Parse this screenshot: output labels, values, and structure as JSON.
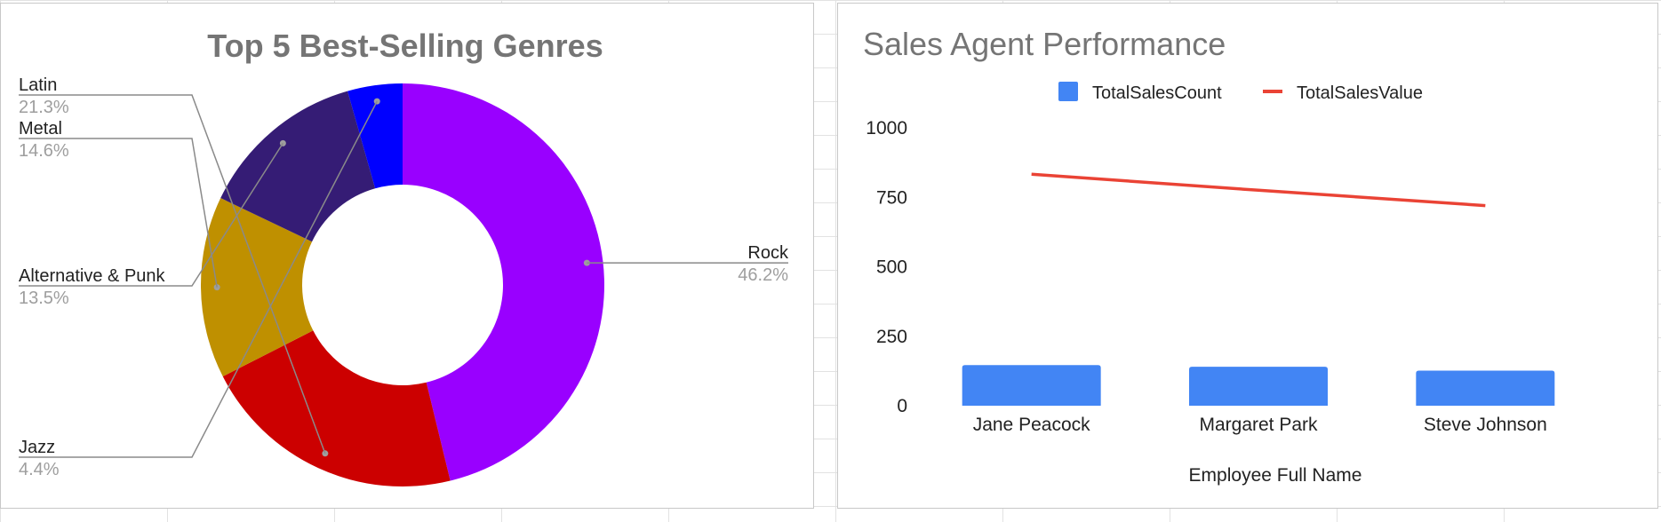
{
  "chart_data": [
    {
      "type": "pie",
      "donut": true,
      "title": "Top 5 Best-Selling Genres",
      "slices": [
        {
          "label": "Rock",
          "value": 46.2,
          "display": "46.2%",
          "color": "#9900ff"
        },
        {
          "label": "Latin",
          "value": 21.3,
          "display": "21.3%",
          "color": "#cc0000"
        },
        {
          "label": "Metal",
          "value": 14.6,
          "display": "14.6%",
          "color": "#bf9000"
        },
        {
          "label": "Alternative & Punk",
          "value": 13.5,
          "display": "13.5%",
          "color": "#351c75"
        },
        {
          "label": "Jazz",
          "value": 4.4,
          "display": "4.4%",
          "color": "#0000ff"
        }
      ]
    },
    {
      "type": "bar",
      "title": "Sales Agent Performance",
      "xlabel": "Employee Full Name",
      "ylabel": "",
      "categories": [
        "Jane Peacock",
        "Margaret Park",
        "Steve Johnson"
      ],
      "ylim": [
        0,
        1000
      ],
      "yticks": [
        0,
        250,
        500,
        750,
        1000
      ],
      "legend_position": "top",
      "series": [
        {
          "name": "TotalSalesCount",
          "kind": "bar",
          "color": "#4285f4",
          "values": [
            146,
            140,
            126
          ]
        },
        {
          "name": "TotalSalesValue",
          "kind": "line",
          "color": "#ea4335",
          "values": [
            833.04,
            775.4,
            720.16
          ]
        }
      ]
    }
  ]
}
